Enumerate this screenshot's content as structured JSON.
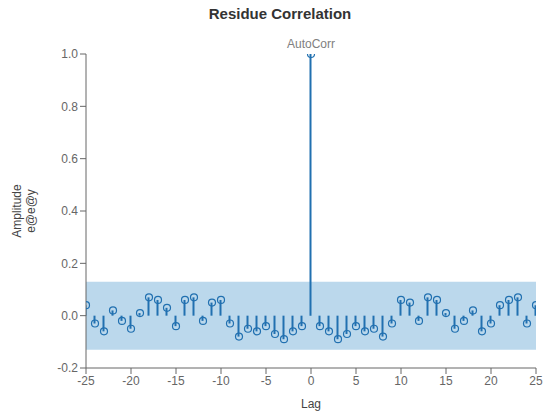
{
  "chart_data": {
    "type": "stem",
    "title": "Residue Correlation",
    "xlabel": "Lag",
    "ylabel": "Amplitude\ne@e@y",
    "annotations": [
      {
        "text": "AutoCorr",
        "x": 0,
        "color": "#808080"
      }
    ],
    "xlim": [
      -25,
      25
    ],
    "ylim": [
      -0.2,
      1.0
    ],
    "yticks": [
      -0.2,
      {
        "value": 0,
        "label": "0.0"
      },
      0.2,
      0.4,
      0.6,
      0.8,
      {
        "value": 1.0,
        "label": "1.0"
      }
    ],
    "xticks": [
      -25,
      -20,
      -15,
      -10,
      -5,
      0,
      5,
      10,
      15,
      20,
      25
    ],
    "conf_band": [
      -0.13,
      0.13
    ],
    "conf_color": "#3d8ec9",
    "color": "#2170b0",
    "marker": "open_circle",
    "grid": false,
    "x": [
      -25,
      -24,
      -23,
      -22,
      -21,
      -20,
      -19,
      -18,
      -17,
      -16,
      -15,
      -14,
      -13,
      -12,
      -11,
      -10,
      -9,
      -8,
      -7,
      -6,
      -5,
      -4,
      -3,
      -2,
      -1,
      0,
      1,
      2,
      3,
      4,
      5,
      6,
      7,
      8,
      9,
      10,
      11,
      12,
      13,
      14,
      15,
      16,
      17,
      18,
      19,
      20,
      21,
      22,
      23,
      24,
      25
    ],
    "values": [
      0.04,
      -0.03,
      -0.06,
      0.02,
      -0.02,
      -0.05,
      0.01,
      0.07,
      0.06,
      0.03,
      -0.04,
      0.06,
      0.07,
      -0.02,
      0.05,
      0.06,
      -0.03,
      -0.08,
      -0.05,
      -0.06,
      -0.04,
      -0.07,
      -0.09,
      -0.06,
      -0.04,
      1.0,
      -0.04,
      -0.06,
      -0.09,
      -0.07,
      -0.04,
      -0.06,
      -0.05,
      -0.08,
      -0.03,
      0.06,
      0.05,
      -0.02,
      0.07,
      0.06,
      0.01,
      -0.05,
      -0.02,
      0.02,
      -0.06,
      -0.03,
      0.04,
      0.06,
      0.07,
      -0.03,
      0.04
    ]
  }
}
